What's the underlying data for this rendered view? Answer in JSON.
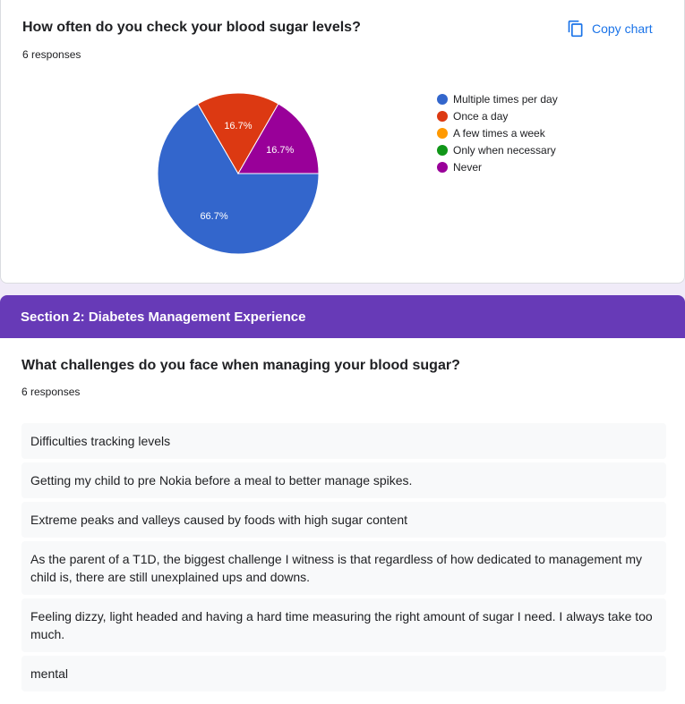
{
  "question1": {
    "title": "How often do you check your blood sugar levels?",
    "count": "6 responses",
    "copy_label": "Copy chart"
  },
  "chart_data": {
    "type": "pie",
    "categories": [
      "Multiple times per day",
      "Once a day",
      "A few times a week",
      "Only when necessary",
      "Never"
    ],
    "values": [
      66.7,
      16.7,
      0,
      0,
      16.7
    ],
    "labels": [
      "66.7%",
      "16.7%",
      "",
      "",
      "16.7%"
    ],
    "colors": [
      "#3366cc",
      "#dc3912",
      "#ff9900",
      "#109618",
      "#990099"
    ],
    "legend_position": "right"
  },
  "section2": {
    "header": "Section 2: Diabetes Management Experience",
    "question": "What challenges do you face when managing your blood sugar?",
    "count": "6 responses",
    "responses": [
      "Difficulties tracking levels",
      "Getting my child to pre Nokia before a meal to better manage spikes.",
      "Extreme peaks and valleys caused by foods with high sugar content",
      "As the parent of a T1D, the biggest challenge I witness is that regardless of how dedicated to management my child is, there are still unexplained ups and downs.",
      "Feeling dizzy, light headed and having a hard time measuring the right amount of sugar I need. I always take too much.",
      "mental"
    ]
  },
  "icons": {
    "copy": "copy-icon"
  }
}
